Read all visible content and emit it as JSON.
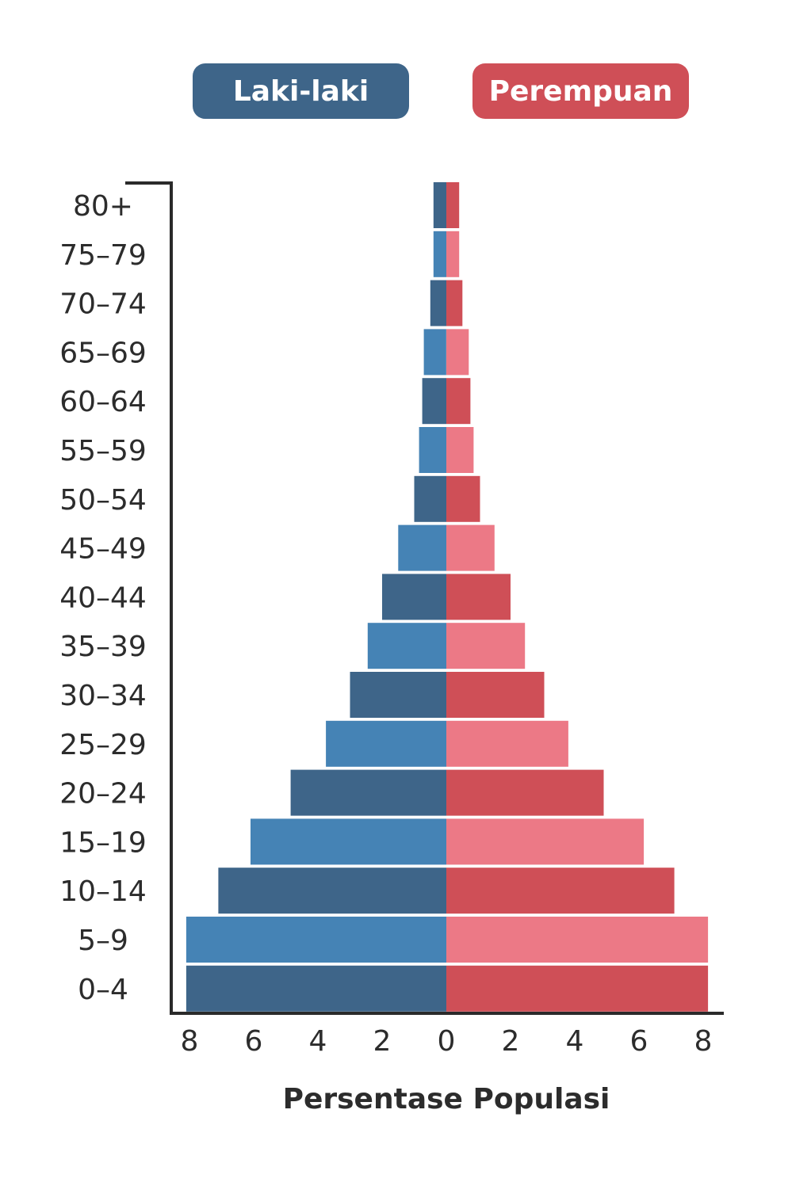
{
  "chart_data": {
    "type": "bar",
    "orientation": "horizontal-mirrored",
    "title": "",
    "xlabel": "Persentase Populasi",
    "ylabel": "",
    "xlim": [
      -8,
      8
    ],
    "x_ticks": [
      -8,
      -6,
      -4,
      -2,
      0,
      2,
      4,
      6,
      8
    ],
    "x_tick_labels": [
      "8",
      "6",
      "4",
      "2",
      "0",
      "2",
      "4",
      "6",
      "8"
    ],
    "categories": [
      "80+",
      "75-79",
      "70-74",
      "65-69",
      "60-64",
      "55-59",
      "50-54",
      "45-49",
      "40-44",
      "35-39",
      "30-34",
      "25-29",
      "20-24",
      "15-19",
      "10-14",
      "5-9",
      "0-4"
    ],
    "category_labels": [
      "80+",
      "75–79",
      "70–74",
      "65–69",
      "60–64",
      "55–59",
      "50–54",
      "45–49",
      "40–44",
      "35–39",
      "30–34",
      "25–29",
      "20–24",
      "15–19",
      "10–14",
      "5–9",
      "0–4"
    ],
    "series": [
      {
        "name": "Laki-laki",
        "side": "left",
        "values": [
          0.4,
          0.4,
          0.5,
          0.7,
          0.75,
          0.85,
          1.0,
          1.5,
          2.0,
          2.45,
          3.0,
          3.75,
          4.85,
          6.1,
          7.1,
          8.1,
          8.1
        ],
        "colors": [
          "#3e6589",
          "#4583b5"
        ]
      },
      {
        "name": "Perempuan",
        "side": "right",
        "values": [
          0.4,
          0.4,
          0.5,
          0.7,
          0.75,
          0.85,
          1.05,
          1.5,
          2.0,
          2.45,
          3.05,
          3.8,
          4.9,
          6.15,
          7.1,
          8.15,
          8.15
        ],
        "colors": [
          "#cf4f57",
          "#ec7986"
        ]
      }
    ],
    "legend": {
      "placement": "top",
      "male_label": "Laki-laki",
      "female_label": "Perempuan",
      "male_color": "#3e6589",
      "female_color": "#cf4f57"
    },
    "grid": false
  }
}
